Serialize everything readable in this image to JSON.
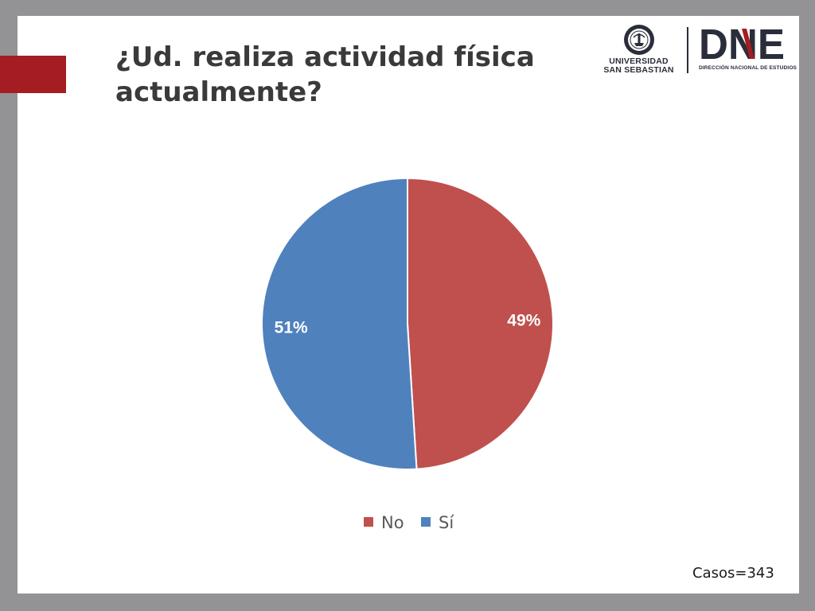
{
  "slide": {
    "title_line1": "¿Ud. realiza actividad física",
    "title_line2": "actualmente?",
    "casos": "Casos=343"
  },
  "logos": {
    "university": "UNIVERSIDAD",
    "university_line2": "SAN SEBASTIAN",
    "dne": "DNE",
    "dne_subtitle": "DIRECCIÓN NACIONAL DE ESTUDIOS"
  },
  "colors": {
    "accent": "#a31d22",
    "no": "#c0504d",
    "si": "#4f81bd"
  },
  "chart_data": {
    "type": "pie",
    "categories": [
      "No",
      "Sí"
    ],
    "values": [
      49,
      51
    ],
    "labels": [
      "49%",
      "51%"
    ],
    "colors": [
      "#c0504d",
      "#4f81bd"
    ],
    "legend_position": "bottom"
  }
}
